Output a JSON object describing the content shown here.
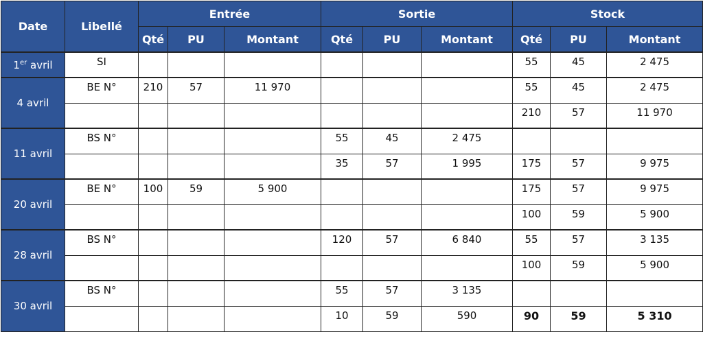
{
  "headers": {
    "date": "Date",
    "libelle": "Libellé",
    "entree": "Entrée",
    "sortie": "Sortie",
    "stock": "Stock",
    "qte": "Qté",
    "pu": "PU",
    "montant": "Montant"
  },
  "header_color": "#2f5597",
  "first_date": {
    "day": "1",
    "sup": "er",
    "month": " avril"
  },
  "rows": [
    {
      "date": "",
      "lib": "SI",
      "eq": "",
      "epu": "",
      "em": "",
      "sq": "",
      "spu": "",
      "sm": "",
      "kq": "55",
      "kpu": "45",
      "km": "2 475"
    },
    {
      "date": "4 avril",
      "lib": "BE N°",
      "eq": "210",
      "epu": "57",
      "em": "11 970",
      "sq": "",
      "spu": "",
      "sm": "",
      "kq": "55",
      "kpu": "45",
      "km": "2 475"
    },
    {
      "lib": "",
      "eq": "",
      "epu": "",
      "em": "",
      "sq": "",
      "spu": "",
      "sm": "",
      "kq": "210",
      "kpu": "57",
      "km": "11 970"
    },
    {
      "date": "11 avril",
      "lib": "BS N°",
      "eq": "",
      "epu": "",
      "em": "",
      "sq": "55",
      "spu": "45",
      "sm": "2 475",
      "kq": "",
      "kpu": "",
      "km": ""
    },
    {
      "lib": "",
      "eq": "",
      "epu": "",
      "em": "",
      "sq": "35",
      "spu": "57",
      "sm": "1 995",
      "kq": "175",
      "kpu": "57",
      "km": "9 975"
    },
    {
      "date": "20 avril",
      "lib": "BE N°",
      "eq": "100",
      "epu": "59",
      "em": "5 900",
      "sq": "",
      "spu": "",
      "sm": "",
      "kq": "175",
      "kpu": "57",
      "km": "9 975"
    },
    {
      "lib": "",
      "eq": "",
      "epu": "",
      "em": "",
      "sq": "",
      "spu": "",
      "sm": "",
      "kq": "100",
      "kpu": "59",
      "km": "5 900"
    },
    {
      "date": "28 avril",
      "lib": "BS N°",
      "eq": "",
      "epu": "",
      "em": "",
      "sq": "120",
      "spu": "57",
      "sm": "6 840",
      "kq": "55",
      "kpu": "57",
      "km": "3 135"
    },
    {
      "lib": "",
      "eq": "",
      "epu": "",
      "em": "",
      "sq": "",
      "spu": "",
      "sm": "",
      "kq": "100",
      "kpu": "59",
      "km": "5 900"
    },
    {
      "date": "30 avril",
      "lib": "BS N°",
      "eq": "",
      "epu": "",
      "em": "",
      "sq": "55",
      "spu": "57",
      "sm": "3 135",
      "kq": "",
      "kpu": "",
      "km": ""
    },
    {
      "lib": "",
      "eq": "",
      "epu": "",
      "em": "",
      "sq": "10",
      "spu": "59",
      "sm": "590",
      "kq": "90",
      "kpu": "59",
      "km": "5 310",
      "bold": true
    }
  ]
}
